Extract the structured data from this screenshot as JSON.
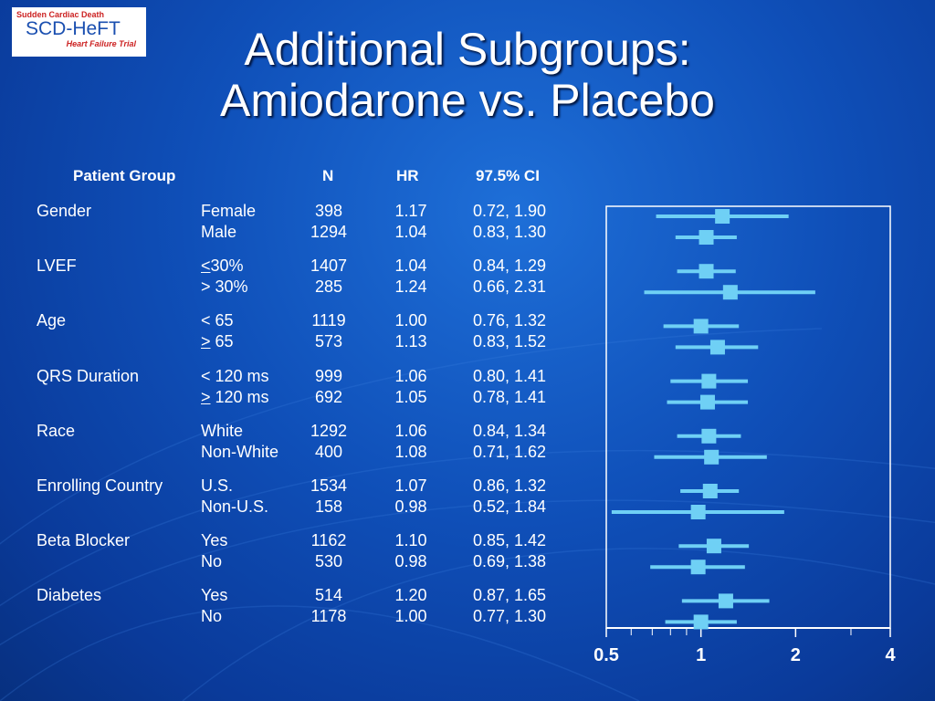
{
  "logo": {
    "line1": "Sudden Cardiac Death",
    "line2": "SCD-HeFT",
    "line3": "Heart Failure Trial"
  },
  "title": {
    "line1": "Additional Subgroups:",
    "line2": "Amiodarone vs. Placebo"
  },
  "table": {
    "headers": {
      "group": "Patient Group",
      "n": "N",
      "hr": "HR",
      "ci": "97.5% CI"
    },
    "groups": [
      {
        "name": "Gender",
        "rows": [
          {
            "sub_prefix": "",
            "sub": "Female",
            "n": "398",
            "hr": "1.17",
            "ci": "0.72, 1.90"
          },
          {
            "sub_prefix": "",
            "sub": "Male",
            "n": "1294",
            "hr": "1.04",
            "ci": "0.83, 1.30"
          }
        ]
      },
      {
        "name": "LVEF",
        "rows": [
          {
            "sub_prefix": "<",
            "sub": "30%",
            "n": "1407",
            "hr": "1.04",
            "ci": "0.84, 1.29"
          },
          {
            "sub_prefix": "",
            "sub": "> 30%",
            "n": "285",
            "hr": "1.24",
            "ci": "0.66, 2.31"
          }
        ]
      },
      {
        "name": "Age",
        "rows": [
          {
            "sub_prefix": "",
            "sub": "< 65",
            "n": "1119",
            "hr": "1.00",
            "ci": "0.76, 1.32"
          },
          {
            "sub_prefix": ">",
            "sub": " 65",
            "n": "573",
            "hr": "1.13",
            "ci": "0.83, 1.52"
          }
        ]
      },
      {
        "name": "QRS Duration",
        "rows": [
          {
            "sub_prefix": "",
            "sub": "< 120 ms",
            "n": "999",
            "hr": "1.06",
            "ci": "0.80, 1.41"
          },
          {
            "sub_prefix": ">",
            "sub": " 120 ms",
            "n": "692",
            "hr": "1.05",
            "ci": "0.78, 1.41"
          }
        ]
      },
      {
        "name": "Race",
        "rows": [
          {
            "sub_prefix": "",
            "sub": "White",
            "n": "1292",
            "hr": "1.06",
            "ci": "0.84, 1.34"
          },
          {
            "sub_prefix": "",
            "sub": "Non-White",
            "n": "400",
            "hr": "1.08",
            "ci": "0.71, 1.62"
          }
        ]
      },
      {
        "name": "Enrolling Country",
        "rows": [
          {
            "sub_prefix": "",
            "sub": "U.S.",
            "n": "1534",
            "hr": "1.07",
            "ci": "0.86, 1.32"
          },
          {
            "sub_prefix": "",
            "sub": "Non-U.S.",
            "n": "158",
            "hr": "0.98",
            "ci": "0.52, 1.84"
          }
        ]
      },
      {
        "name": "Beta Blocker",
        "rows": [
          {
            "sub_prefix": "",
            "sub": "Yes",
            "n": "1162",
            "hr": "1.10",
            "ci": "0.85, 1.42"
          },
          {
            "sub_prefix": "",
            "sub": "No",
            "n": "530",
            "hr": "0.98",
            "ci": "0.69, 1.38"
          }
        ]
      },
      {
        "name": "Diabetes",
        "rows": [
          {
            "sub_prefix": "",
            "sub": "Yes",
            "n": "514",
            "hr": "1.20",
            "ci": "0.87, 1.65"
          },
          {
            "sub_prefix": "",
            "sub": "No",
            "n": "1178",
            "hr": "1.00",
            "ci": "0.77, 1.30"
          }
        ]
      }
    ]
  },
  "chart_data": {
    "type": "forest",
    "x_scale": "log",
    "xlim": [
      0.5,
      4
    ],
    "x_tick_labels": [
      "0.5",
      "1",
      "2",
      "4"
    ],
    "x_tick_values": [
      0.5,
      1,
      2,
      4
    ],
    "minor_ticks": [
      0.6,
      0.7,
      0.8,
      0.9,
      3
    ],
    "points": [
      {
        "hr": 1.17,
        "lo": 0.72,
        "hi": 1.9
      },
      {
        "hr": 1.04,
        "lo": 0.83,
        "hi": 1.3
      },
      {
        "hr": 1.04,
        "lo": 0.84,
        "hi": 1.29
      },
      {
        "hr": 1.24,
        "lo": 0.66,
        "hi": 2.31
      },
      {
        "hr": 1.0,
        "lo": 0.76,
        "hi": 1.32
      },
      {
        "hr": 1.13,
        "lo": 0.83,
        "hi": 1.52
      },
      {
        "hr": 1.06,
        "lo": 0.8,
        "hi": 1.41
      },
      {
        "hr": 1.05,
        "lo": 0.78,
        "hi": 1.41
      },
      {
        "hr": 1.06,
        "lo": 0.84,
        "hi": 1.34
      },
      {
        "hr": 1.08,
        "lo": 0.71,
        "hi": 1.62
      },
      {
        "hr": 1.07,
        "lo": 0.86,
        "hi": 1.32
      },
      {
        "hr": 0.98,
        "lo": 0.52,
        "hi": 1.84
      },
      {
        "hr": 1.1,
        "lo": 0.85,
        "hi": 1.42
      },
      {
        "hr": 0.98,
        "lo": 0.69,
        "hi": 1.38
      },
      {
        "hr": 1.2,
        "lo": 0.87,
        "hi": 1.65
      },
      {
        "hr": 1.0,
        "lo": 0.77,
        "hi": 1.3
      }
    ],
    "colors": {
      "marker": "#6fd0f5",
      "axis": "#ffffff"
    }
  }
}
